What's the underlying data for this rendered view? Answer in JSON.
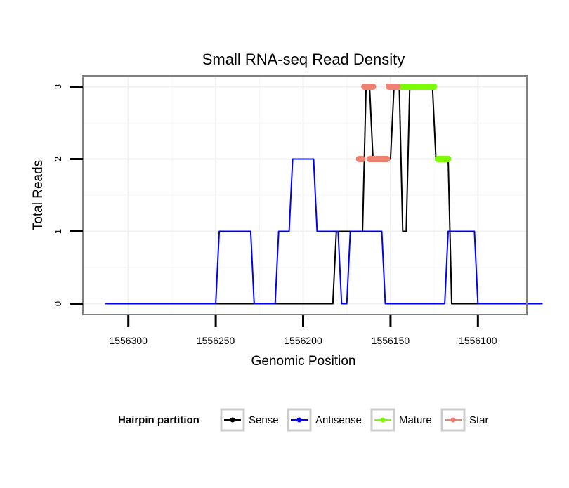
{
  "chart_data": {
    "type": "line",
    "title": "Small RNA-seq Read Density",
    "xlabel": "Genomic Position",
    "ylabel": "Total Reads",
    "x_reversed": true,
    "xlim": [
      1556326,
      1556072
    ],
    "ylim": [
      -0.15,
      3.15
    ],
    "xticks": [
      1556300,
      1556250,
      1556200,
      1556150,
      1556100
    ],
    "xtick_labels": [
      "1556300",
      "1556250",
      "1556200",
      "1556150",
      "1556100"
    ],
    "yticks": [
      0,
      1,
      2,
      3
    ],
    "ytick_labels": [
      "0",
      "1",
      "2",
      "3"
    ],
    "grid": true,
    "legend": {
      "title": "Hairpin partition",
      "position": "bottom",
      "entries": [
        "Sense",
        "Antisense",
        "Mature",
        "Star"
      ]
    },
    "series": [
      {
        "name": "Sense",
        "color": "#000000",
        "style": "line",
        "points": [
          [
            1556313,
            0
          ],
          [
            1556183,
            0
          ],
          [
            1556181,
            1
          ],
          [
            1556166,
            1
          ],
          [
            1556164,
            3
          ],
          [
            1556162,
            3
          ],
          [
            1556160,
            2
          ],
          [
            1556150,
            2
          ],
          [
            1556148,
            3
          ],
          [
            1556145,
            3
          ],
          [
            1556143,
            1
          ],
          [
            1556141,
            1
          ],
          [
            1556139,
            3
          ],
          [
            1556126,
            3
          ],
          [
            1556124,
            2
          ],
          [
            1556117,
            2
          ],
          [
            1556115,
            0
          ],
          [
            1556063,
            0
          ]
        ]
      },
      {
        "name": "Antisense",
        "color": "#0000ff",
        "style": "line",
        "points": [
          [
            1556313,
            0
          ],
          [
            1556250,
            0
          ],
          [
            1556248,
            1
          ],
          [
            1556230,
            1
          ],
          [
            1556228,
            0
          ],
          [
            1556216,
            0
          ],
          [
            1556214,
            1
          ],
          [
            1556208,
            1
          ],
          [
            1556206,
            2
          ],
          [
            1556194,
            2
          ],
          [
            1556192,
            1
          ],
          [
            1556180,
            1
          ],
          [
            1556178,
            0
          ],
          [
            1556175,
            0
          ],
          [
            1556173,
            1
          ],
          [
            1556155,
            1
          ],
          [
            1556153,
            0
          ],
          [
            1556119,
            0
          ],
          [
            1556117,
            1
          ],
          [
            1556102,
            1
          ],
          [
            1556100,
            0
          ],
          [
            1556063,
            0
          ]
        ]
      },
      {
        "name": "Mature",
        "color": "#7cfc00",
        "style": "points",
        "segments": [
          {
            "x": [
              1556145,
              1556125
            ],
            "y": 3
          },
          {
            "x": [
              1556123,
              1556117
            ],
            "y": 2
          }
        ]
      },
      {
        "name": "Star",
        "color": "#f08070",
        "style": "points",
        "segments": [
          {
            "x": [
              1556165,
              1556160
            ],
            "y": 3
          },
          {
            "x": [
              1556151,
              1556146
            ],
            "y": 3
          },
          {
            "x": [
              1556168,
              1556166
            ],
            "y": 2
          },
          {
            "x": [
              1556162,
              1556152
            ],
            "y": 2
          }
        ]
      }
    ]
  }
}
